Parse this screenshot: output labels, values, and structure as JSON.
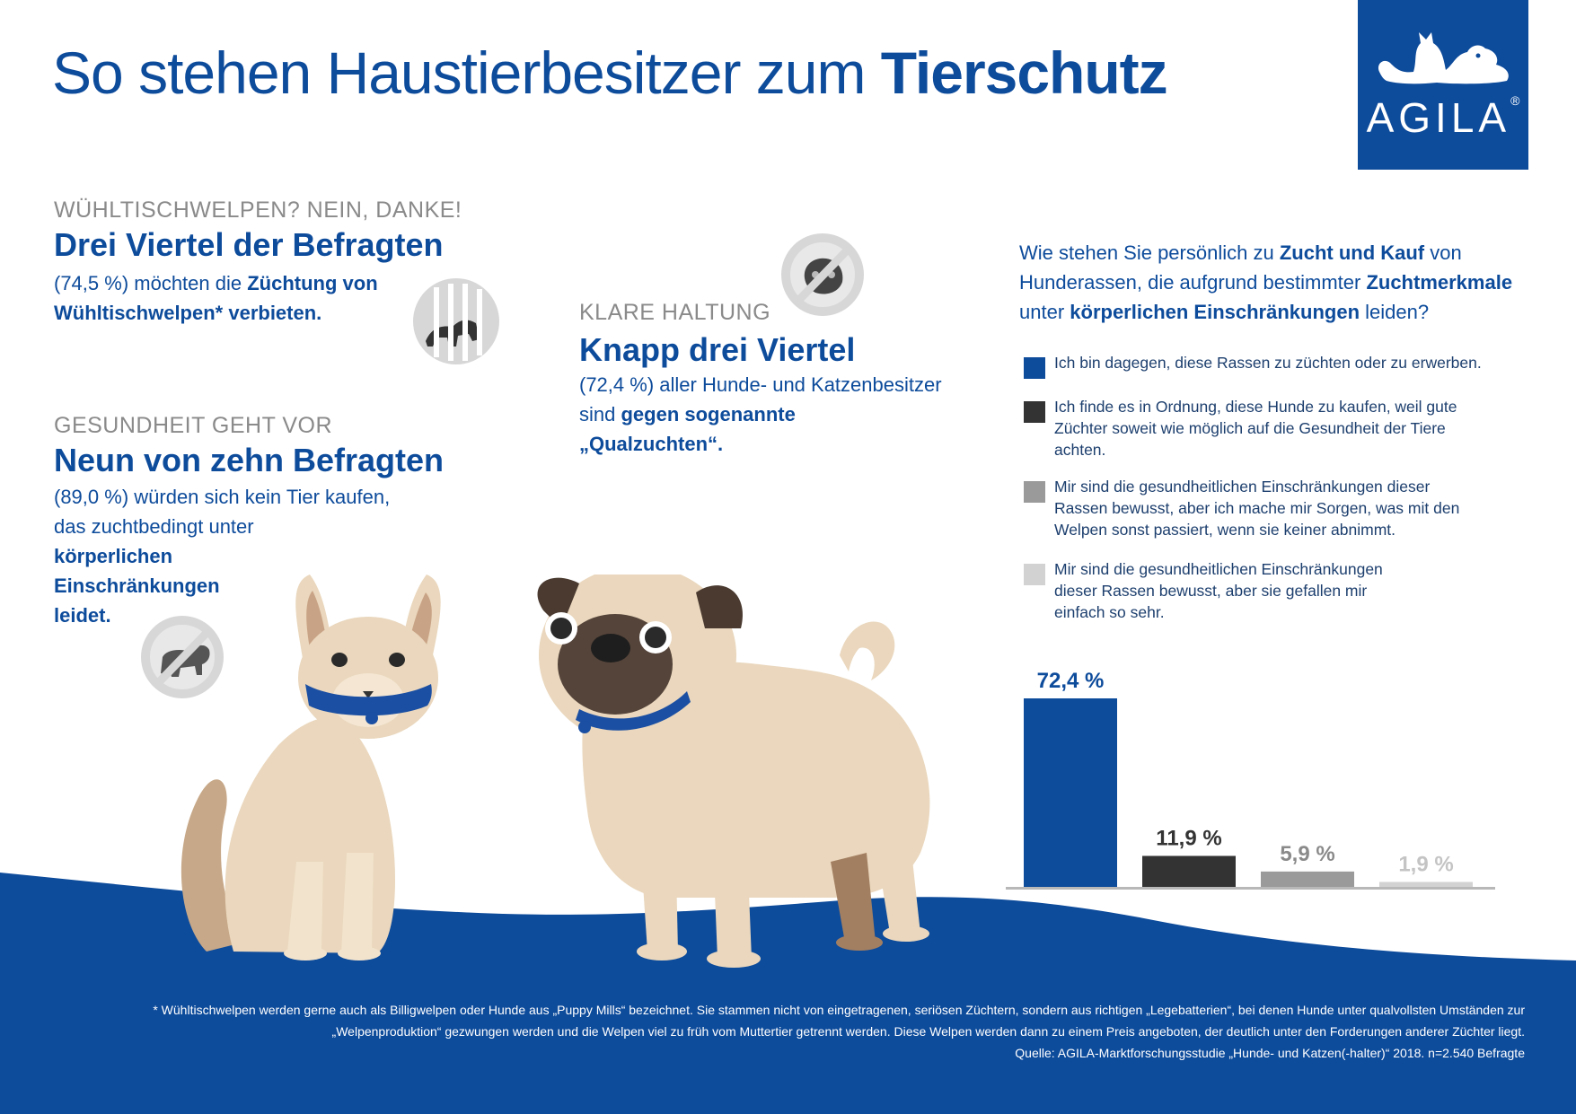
{
  "title": {
    "regular": "So stehen Haustierbesitzer zum ",
    "bold": "Tierschutz"
  },
  "logo": {
    "text": "AGILA",
    "mark": "®"
  },
  "sections": {
    "puppies": {
      "kicker": "WÜHLTISCHWELPEN? NEIN, DANKE!",
      "headline": "Drei Viertel der Befragten",
      "line1": "(74,5 %) möchten die ",
      "line1_bold": "Züchtung von",
      "line2_bold": "Wühltischwelpen* verbieten.",
      "icon": "caged-dog-icon"
    },
    "health": {
      "kicker": "GESUNDHEIT GEHT VOR",
      "headline": "Neun von zehn Befragten",
      "line1": "(89,0 %) würden sich kein Tier kaufen,",
      "line2": "das zuchtbedingt unter",
      "line3_bold": "körperlichen",
      "line4_bold": "Einschränkungen",
      "line5_bold": "leidet.",
      "icon": "no-bulldog-icon"
    },
    "clear": {
      "kicker": "KLARE HALTUNG",
      "headline": "Knapp drei Viertel",
      "line1": "(72,4 %) aller Hunde- und Katzenbesitzer",
      "line2": "sind ",
      "line2_bold": "gegen sogenannte",
      "line3_bold": "„Qualzuchten“.",
      "icon": "no-flat-face-icon"
    }
  },
  "question": {
    "p1": "Wie stehen Sie persönlich zu ",
    "b1": "Zucht und Kauf",
    "p2": " von Hunderassen, die aufgrund bestimmter ",
    "b2": "Zuchtmerkmale",
    "p3": " unter ",
    "b3": "körperlichen Einschränkungen",
    "p4": " leiden?"
  },
  "legend": [
    {
      "text": "Ich bin dagegen, diese Rassen zu züchten oder zu erwerben.",
      "color": "#0d4b9b"
    },
    {
      "text": "Ich finde es in Ordnung, diese Hunde zu kaufen, weil gute Züchter soweit wie möglich auf die Gesundheit der Tiere achten.",
      "color": "#333333"
    },
    {
      "text": "Mir sind die gesundheitlichen Einschränkungen dieser Rassen bewusst, aber ich mache mir Sorgen, was mit den Welpen sonst passiert, wenn sie keiner abnimmt.",
      "color": "#9a9a9a"
    },
    {
      "text": "Mir sind die gesundheitlichen Einschränkungen dieser Rassen bewusst, aber sie gefallen mir einfach so sehr.",
      "color": "#d2d2d2"
    }
  ],
  "chart_data": {
    "type": "bar",
    "categories": [
      "Ich bin dagegen, diese Rassen zu züchten oder zu erwerben.",
      "Ich finde es in Ordnung, diese Hunde zu kaufen, weil gute Züchter soweit wie möglich auf die Gesundheit der Tiere achten.",
      "Mir sind die gesundheitlichen Einschränkungen dieser Rassen bewusst, aber ich mache mir Sorgen, was mit den Welpen sonst passiert, wenn sie keiner abnimmt.",
      "Mir sind die gesundheitlichen Einschränkungen dieser Rassen bewusst, aber sie gefallen mir einfach so sehr."
    ],
    "values": [
      72.4,
      11.9,
      5.9,
      1.9
    ],
    "labels": [
      "72,4 %",
      "11,9 %",
      "5,9 %",
      "1,9 %"
    ],
    "colors": [
      "#0d4b9b",
      "#333333",
      "#9a9a9a",
      "#d2d2d2"
    ],
    "label_colors": [
      "#0d4b9b",
      "#333333",
      "#8a8a8a",
      "#c4c4c4"
    ],
    "ylim": [
      0,
      72.4
    ],
    "grid": false,
    "legend_position": "top"
  },
  "footnote": {
    "line1": "* Wühltischwelpen werden gerne auch als Billigwelpen oder Hunde aus „Puppy Mills“ bezeichnet. Sie stammen nicht von eingetragenen, seriösen Züchtern, sondern aus richtigen „Legebatterien“, bei denen Hunde unter qualvollsten Umständen zur",
    "line2": "„Welpenproduktion“ gezwungen werden und die Welpen viel zu früh vom Muttertier getrennt werden. Diese Welpen werden dann zu einem Preis angeboten, der deutlich unter den Forderungen anderer Züchter liegt.",
    "source": "Quelle: AGILA-Marktforschungsstudie „Hunde- und Katzen(-halter)“ 2018. n=2.540 Befragte"
  }
}
